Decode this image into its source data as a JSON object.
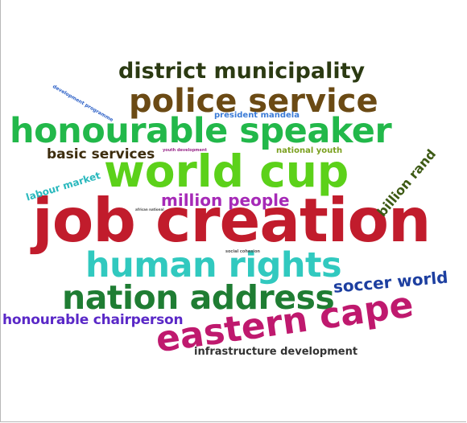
{
  "colors": {
    "background": "#ffffff",
    "frame": "#b8b8b8"
  },
  "words": [
    {
      "id": "job-creation",
      "text": "job creation",
      "color": "#c11c2c"
    },
    {
      "id": "world-cup",
      "text": "world cup",
      "color": "#5cd11a"
    },
    {
      "id": "honourable-speaker",
      "text": "honourable speaker",
      "color": "#22b84a"
    },
    {
      "id": "police-service",
      "text": "police service",
      "color": "#6b4a14"
    },
    {
      "id": "human-rights",
      "text": "human rights",
      "color": "#31c9bf"
    },
    {
      "id": "nation-address",
      "text": "nation address",
      "color": "#1f7d33"
    },
    {
      "id": "eastern-cape",
      "text": "eastern cape",
      "color": "#bf196e"
    },
    {
      "id": "district-municipality",
      "text": "district municipality",
      "color": "#2b3a12"
    },
    {
      "id": "soccer-world",
      "text": "soccer world",
      "color": "#1d3fa0"
    },
    {
      "id": "million-people",
      "text": "million people",
      "color": "#a62ab7"
    },
    {
      "id": "honourable-chairperson",
      "text": "honourable chairperson",
      "color": "#5a28c7"
    },
    {
      "id": "basic-services",
      "text": "basic services",
      "color": "#3d2d0e"
    },
    {
      "id": "billion-rand",
      "text": "billion rand",
      "color": "#3d5a14"
    },
    {
      "id": "infrastructure-development",
      "text": "infrastructure development",
      "color": "#333333"
    },
    {
      "id": "labour-market",
      "text": "labour market",
      "color": "#29b8bd"
    },
    {
      "id": "president-mandela",
      "text": "president mandela",
      "color": "#3b7bd6"
    },
    {
      "id": "national-youth",
      "text": "national youth",
      "color": "#7ba01f"
    },
    {
      "id": "development-programme",
      "text": "development programme",
      "color": "#2d61c7"
    },
    {
      "id": "youth-development",
      "text": "youth development",
      "color": "#9a2a8a"
    },
    {
      "id": "social-cohesion",
      "text": "social cohesion",
      "color": "#555555"
    },
    {
      "id": "african-national",
      "text": "african national",
      "color": "#4a4a4a"
    }
  ]
}
